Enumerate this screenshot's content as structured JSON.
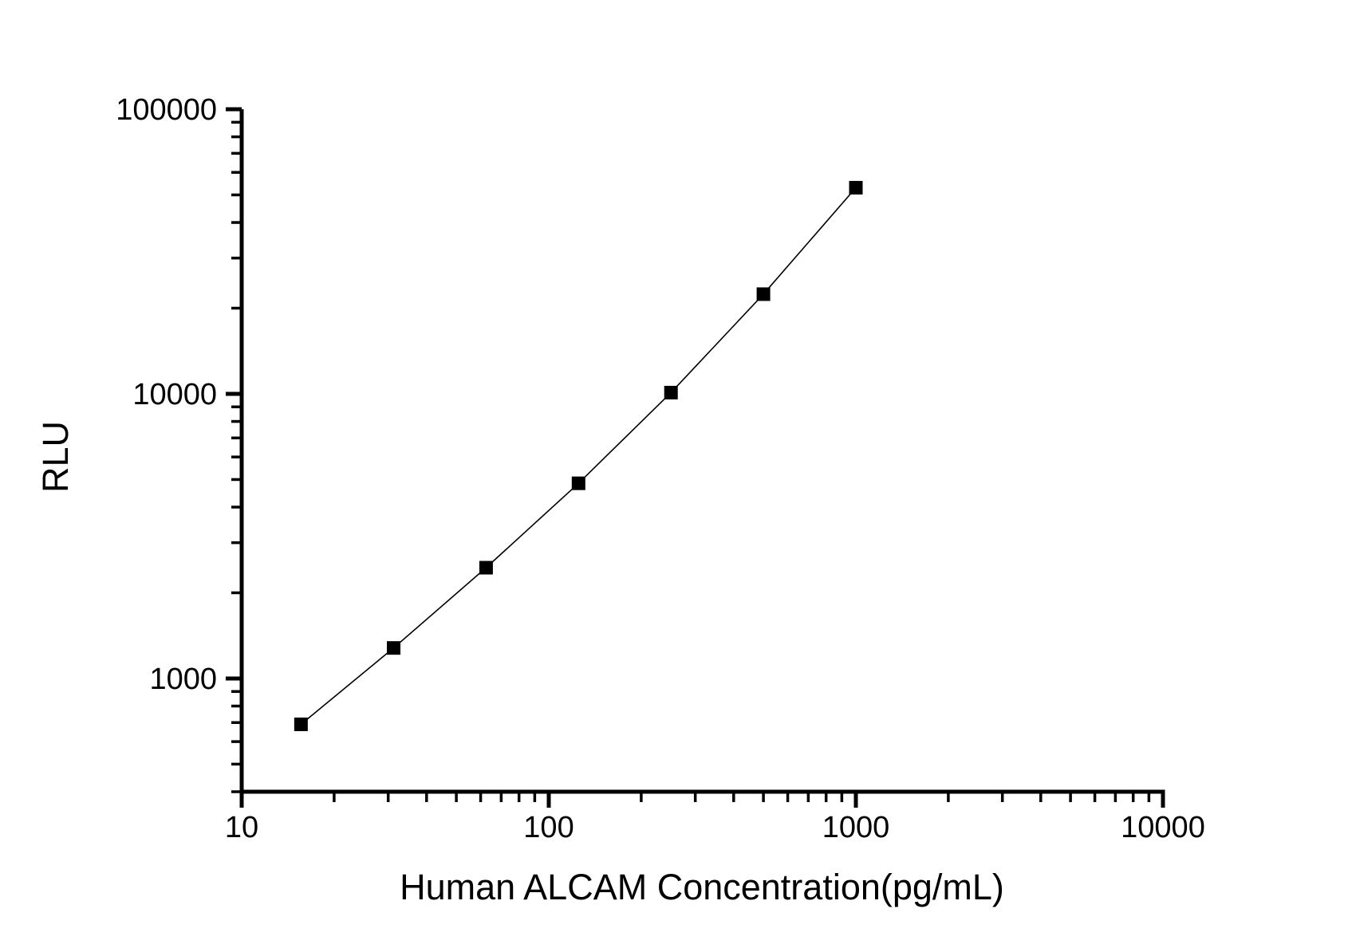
{
  "figure": {
    "background_color": "#ffffff",
    "foreground_color": "#000000"
  },
  "chart_data": {
    "type": "line",
    "subtype": "scatter-line standard curve",
    "title": "",
    "xlabel": "Human ALCAM Concentration(pg/mL)",
    "ylabel": "RLU",
    "x_scale": "log",
    "y_scale": "log",
    "xlim": [
      10,
      10000
    ],
    "ylim": [
      400,
      100000
    ],
    "grid": false,
    "legend": null,
    "x_major_ticks": [
      10,
      100,
      1000,
      10000
    ],
    "x_tick_labels": [
      "10",
      "100",
      "1000",
      "10000"
    ],
    "y_major_ticks": [
      1000,
      10000,
      100000
    ],
    "y_tick_labels": [
      "1000",
      "10000",
      "100000"
    ],
    "minor_ticks_visible": true,
    "series": [
      {
        "name": "standard-curve",
        "marker": "filled-square",
        "marker_size_px": 17,
        "marker_color": "#000000",
        "line_color": "#000000",
        "x": [
          15.6,
          31.25,
          62.5,
          125,
          250,
          500,
          1000
        ],
        "y": [
          690,
          1280,
          2450,
          4850,
          10100,
          22400,
          53000
        ]
      }
    ]
  }
}
